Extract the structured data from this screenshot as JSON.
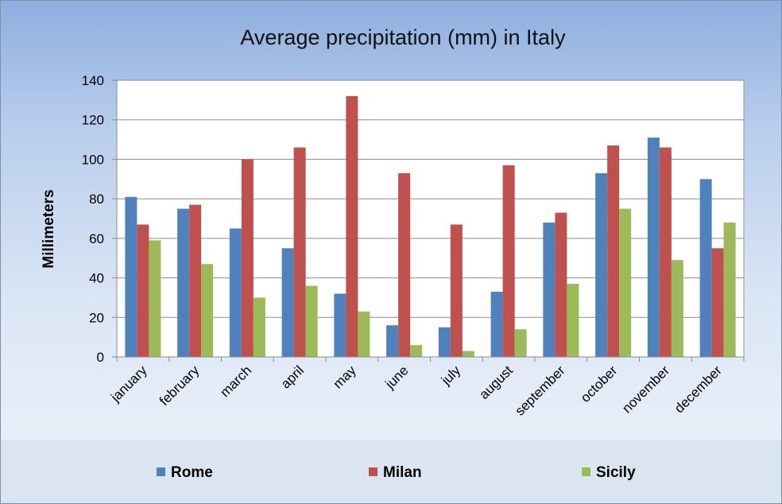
{
  "chart_data": {
    "type": "bar",
    "title": "Average precipitation (mm) in Italy",
    "xlabel": "",
    "ylabel": "Millimeters",
    "ylim": [
      0,
      140
    ],
    "yticks": [
      "0",
      "20",
      "40",
      "60",
      "80",
      "100",
      "120",
      "140"
    ],
    "grid": true,
    "legend_position": "bottom",
    "categories": [
      "january",
      "february",
      "march",
      "april",
      "may",
      "june",
      "july",
      "august",
      "september",
      "october",
      "november",
      "december"
    ],
    "series": [
      {
        "name": "Rome",
        "color": "#4f81bd",
        "values": [
          81,
          75,
          65,
          55,
          32,
          16,
          15,
          33,
          68,
          93,
          111,
          90
        ]
      },
      {
        "name": "Milan",
        "color": "#c0504d",
        "values": [
          67,
          77,
          100,
          106,
          132,
          93,
          67,
          97,
          73,
          107,
          106,
          55
        ]
      },
      {
        "name": "Sicily",
        "color": "#9bbb59",
        "values": [
          59,
          47,
          30,
          36,
          23,
          6,
          3,
          14,
          37,
          75,
          49,
          68
        ]
      }
    ]
  }
}
